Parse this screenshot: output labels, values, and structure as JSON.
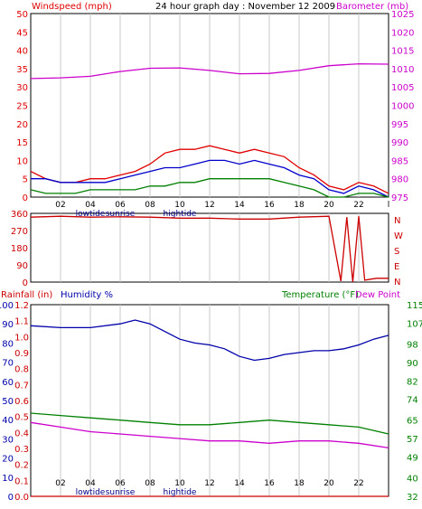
{
  "colors": {
    "wind": "#e00000",
    "avgwind": "#0000cc",
    "gust_green": "#008000",
    "baro": "#cc00cc",
    "rain": "#cc0000",
    "humidity": "#0000aa",
    "temp": "#008000",
    "dewpoint": "#cc00cc",
    "tidelabel": "#000088",
    "frame": "#000000",
    "grid": "#c8c8c8"
  },
  "top_panel": {
    "left_title": "Windspeed (mph)",
    "center_title": "24 hour graph day : November 12 2009",
    "right_title": "Barometer (mb)"
  },
  "bottom_panel": {
    "rain_title": "Rainfall (in)",
    "humidity_title": "Humidity %",
    "temp_title": "Temperature (°F)",
    "dew_title": "Dew Point"
  },
  "x_ticks": [
    "02",
    "04",
    "06",
    "08",
    "10",
    "12",
    "14",
    "16",
    "18",
    "20",
    "22",
    "l"
  ],
  "tide_labels": [
    {
      "text": "lowtide",
      "tick": "04"
    },
    {
      "text": "sunrise",
      "tick": "06"
    },
    {
      "text": "hightide",
      "tick": "10"
    }
  ],
  "chart_data": [
    {
      "type": "line",
      "name": "wind and barometer",
      "x_range": [
        0,
        24
      ],
      "left_axis": {
        "label": "Windspeed (mph)",
        "ticks": [
          0,
          5,
          10,
          15,
          20,
          25,
          30,
          35,
          40,
          45,
          50
        ],
        "ylim": [
          0,
          50
        ]
      },
      "right_axis": {
        "label": "Barometer (mb)",
        "ticks": [
          975,
          980,
          985,
          990,
          995,
          1000,
          1005,
          1010,
          1015,
          1020,
          1025
        ],
        "ylim": [
          975,
          1025
        ]
      },
      "series": [
        {
          "name": "Windspeed (mph)",
          "axis": "left",
          "x": [
            0,
            1,
            2,
            3,
            4,
            5,
            6,
            7,
            8,
            9,
            10,
            11,
            12,
            13,
            14,
            15,
            16,
            17,
            18,
            19,
            20,
            21,
            22,
            23,
            24
          ],
          "values": [
            7,
            5,
            4,
            4,
            5,
            5,
            6,
            7,
            9,
            12,
            13,
            13,
            14,
            13,
            12,
            13,
            12,
            11,
            8,
            6,
            3,
            2,
            4,
            3,
            1
          ]
        },
        {
          "name": "average wind",
          "axis": "left",
          "x": [
            0,
            1,
            2,
            3,
            4,
            5,
            6,
            7,
            8,
            9,
            10,
            11,
            12,
            13,
            14,
            15,
            16,
            17,
            18,
            19,
            20,
            21,
            22,
            23,
            24
          ],
          "values": [
            5,
            5,
            4,
            4,
            4,
            4,
            5,
            6,
            7,
            8,
            8,
            9,
            10,
            10,
            9,
            10,
            9,
            8,
            6,
            5,
            2,
            1,
            3,
            2,
            0
          ]
        },
        {
          "name": "minimum wind",
          "axis": "left",
          "x": [
            0,
            1,
            2,
            3,
            4,
            5,
            6,
            7,
            8,
            9,
            10,
            11,
            12,
            13,
            14,
            15,
            16,
            17,
            18,
            19,
            20,
            21,
            22,
            23,
            24
          ],
          "values": [
            2,
            1,
            1,
            1,
            2,
            2,
            2,
            2,
            3,
            3,
            4,
            4,
            5,
            5,
            5,
            5,
            5,
            4,
            3,
            2,
            0,
            0,
            1,
            1,
            0
          ]
        },
        {
          "name": "Barometer (mb)",
          "axis": "right",
          "x": [
            0,
            2,
            4,
            6,
            8,
            10,
            12,
            14,
            16,
            18,
            20,
            22,
            24
          ],
          "values": [
            1007.3,
            1007.5,
            1007.9,
            1009.2,
            1010.1,
            1010.2,
            1009.5,
            1008.6,
            1008.7,
            1009.5,
            1010.8,
            1011.3,
            1011.2
          ]
        }
      ]
    },
    {
      "type": "line",
      "name": "wind direction",
      "x_range": [
        0,
        24
      ],
      "left_axis": {
        "ticks": [
          0,
          90,
          180,
          270,
          360
        ],
        "ylim": [
          0,
          360
        ]
      },
      "right_axis": {
        "ticks": [
          "N",
          "E",
          "S",
          "W",
          "N"
        ]
      },
      "series": [
        {
          "name": "Wind direction",
          "x": [
            0,
            2,
            4,
            6,
            8,
            10,
            12,
            14,
            16,
            18,
            20,
            20.8,
            21.2,
            21.6,
            22,
            22.4,
            22.8,
            23.2,
            24
          ],
          "values": [
            340,
            345,
            340,
            342,
            340,
            335,
            335,
            330,
            330,
            340,
            345,
            5,
            340,
            0,
            345,
            10,
            15,
            20,
            20
          ]
        }
      ]
    },
    {
      "type": "line",
      "name": "humidity, temperature, dew point, rainfall",
      "x_range": [
        0,
        24
      ],
      "rain_axis": {
        "label": "Rainfall (in)",
        "ticks": [
          0.0,
          0.1,
          0.2,
          0.3,
          0.4,
          0.5,
          0.6,
          0.7,
          0.8,
          0.9,
          1.0,
          1.1,
          1.2
        ],
        "ylim": [
          0,
          1.2
        ]
      },
      "humidity_axis": {
        "label": "Humidity %",
        "ticks": [
          0,
          10,
          20,
          30,
          40,
          50,
          60,
          70,
          80,
          90,
          100
        ],
        "ylim": [
          0,
          100
        ]
      },
      "temp_axis": {
        "label": "Temperature (°F)",
        "ticks": [
          32,
          40,
          49,
          57,
          65,
          74,
          82,
          90,
          98,
          107,
          115
        ],
        "ylim": [
          32,
          115
        ]
      },
      "series": [
        {
          "name": "Humidity %",
          "axis": "humidity",
          "x": [
            0,
            2,
            4,
            6,
            7,
            8,
            9,
            10,
            11,
            12,
            13,
            14,
            15,
            16,
            17,
            18,
            19,
            20,
            21,
            22,
            23,
            24
          ],
          "values": [
            89,
            88,
            88,
            90,
            92,
            90,
            86,
            82,
            80,
            79,
            77,
            73,
            71,
            72,
            74,
            75,
            76,
            76,
            77,
            79,
            82,
            84
          ]
        },
        {
          "name": "Temperature (°F)",
          "axis": "temp",
          "x": [
            0,
            2,
            4,
            6,
            8,
            10,
            12,
            14,
            16,
            18,
            20,
            22,
            24
          ],
          "values": [
            68,
            67,
            66,
            65,
            64,
            63,
            63,
            64,
            65,
            64,
            63,
            62,
            59
          ]
        },
        {
          "name": "Dew Point",
          "axis": "temp",
          "x": [
            0,
            2,
            4,
            6,
            8,
            10,
            12,
            14,
            16,
            18,
            20,
            22,
            24
          ],
          "values": [
            64,
            62,
            60,
            59,
            58,
            57,
            56,
            56,
            55,
            56,
            56,
            55,
            53
          ]
        },
        {
          "name": "Rainfall (in)",
          "axis": "rain",
          "x": [
            0,
            24
          ],
          "values": [
            0,
            0
          ]
        }
      ]
    }
  ]
}
